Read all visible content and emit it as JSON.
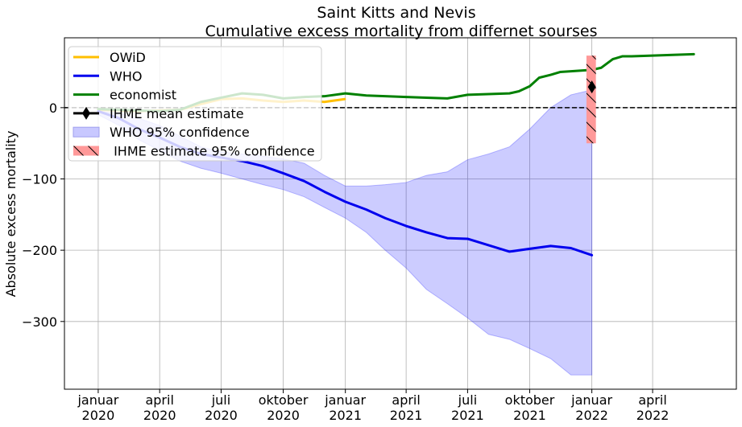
{
  "chart_data": {
    "type": "line",
    "title": "Saint Kitts and Nevis",
    "subtitle": "Cumulative excess mortality from differnet sourses",
    "xlabel": "",
    "ylabel": "Absolute excess mortality",
    "xlim": [
      "2019-11-12",
      "2022-08-03"
    ],
    "ylim": [
      -395,
      98
    ],
    "grid": true,
    "legend_position": "top-left",
    "x_ticks": [
      {
        "date": "2020-01-01",
        "line1": "januar",
        "line2": "2020"
      },
      {
        "date": "2020-04-01",
        "line1": "april",
        "line2": "2020"
      },
      {
        "date": "2020-07-01",
        "line1": "juli",
        "line2": "2020"
      },
      {
        "date": "2020-10-01",
        "line1": "oktober",
        "line2": "2020"
      },
      {
        "date": "2021-01-01",
        "line1": "januar",
        "line2": "2021"
      },
      {
        "date": "2021-04-01",
        "line1": "april",
        "line2": "2021"
      },
      {
        "date": "2021-07-01",
        "line1": "juli",
        "line2": "2021"
      },
      {
        "date": "2021-10-01",
        "line1": "oktober",
        "line2": "2021"
      },
      {
        "date": "2022-01-01",
        "line1": "januar",
        "line2": "2022"
      },
      {
        "date": "2022-04-01",
        "line1": "april",
        "line2": "2022"
      }
    ],
    "y_ticks": [
      0,
      -100,
      -200,
      -300
    ],
    "y_tick_labels": [
      "0",
      "−100",
      "−200",
      "−300"
    ],
    "zero_line": {
      "value": 0,
      "style": "dashed"
    },
    "legend": [
      {
        "label": "OWiD",
        "kind": "line",
        "color": "#ffbf00"
      },
      {
        "label": "WHO",
        "kind": "line",
        "color": "#0000ee"
      },
      {
        "label": "economist",
        "kind": "line",
        "color": "#008000"
      },
      {
        "label": "IHME mean estimate",
        "kind": "marker",
        "color": "#000000"
      },
      {
        "label": "WHO 95% confidence",
        "kind": "band",
        "color": "#c8c8ff"
      },
      {
        "label": " IHME estimate 95% confidence",
        "kind": "hatch",
        "color": "#ff9999"
      }
    ],
    "series": [
      {
        "name": "WHO 95% confidence",
        "kind": "band",
        "color": "#0000ff",
        "x": [
          "2020-01-01",
          "2020-02-01",
          "2020-03-01",
          "2020-04-01",
          "2020-05-01",
          "2020-06-01",
          "2020-07-01",
          "2020-08-01",
          "2020-09-01",
          "2020-10-01",
          "2020-11-01",
          "2020-12-01",
          "2021-01-01",
          "2021-02-01",
          "2021-03-01",
          "2021-04-01",
          "2021-05-01",
          "2021-06-01",
          "2021-07-01",
          "2021-08-01",
          "2021-09-01",
          "2021-10-01",
          "2021-11-01",
          "2021-12-01",
          "2022-01-01"
        ],
        "upper": [
          -5,
          -8,
          -15,
          -25,
          -40,
          -55,
          -62,
          -65,
          -68,
          -72,
          -78,
          -95,
          -110,
          -110,
          -108,
          -105,
          -95,
          -90,
          -73,
          -65,
          -55,
          -30,
          0,
          18,
          25
        ],
        "lower": [
          -10,
          -25,
          -45,
          -60,
          -75,
          -85,
          -92,
          -100,
          -108,
          -115,
          -125,
          -140,
          -155,
          -175,
          -200,
          -225,
          -255,
          -275,
          -295,
          -318,
          -325,
          -338,
          -352,
          -375,
          -375
        ]
      },
      {
        "name": "OWiD",
        "kind": "line",
        "color": "#ffbf00",
        "x": [
          "2020-01-01",
          "2020-02-01",
          "2020-03-01",
          "2020-04-01",
          "2020-05-01",
          "2020-06-01",
          "2020-07-01",
          "2020-08-01",
          "2020-09-01",
          "2020-10-01",
          "2020-11-01",
          "2020-12-01",
          "2020-12-31"
        ],
        "y": [
          -3,
          -4,
          -5,
          -4,
          -3,
          5,
          12,
          13,
          10,
          8,
          10,
          8,
          12
        ]
      },
      {
        "name": "WHO",
        "kind": "line",
        "color": "#0000ee",
        "x": [
          "2020-01-01",
          "2020-02-01",
          "2020-03-01",
          "2020-04-01",
          "2020-05-01",
          "2020-06-01",
          "2020-07-01",
          "2020-08-01",
          "2020-09-01",
          "2020-10-01",
          "2020-11-01",
          "2020-12-01",
          "2021-01-01",
          "2021-02-01",
          "2021-03-01",
          "2021-04-01",
          "2021-05-01",
          "2021-06-01",
          "2021-07-01",
          "2021-08-01",
          "2021-09-01",
          "2021-10-01",
          "2021-11-01",
          "2021-12-01",
          "2022-01-01"
        ],
        "y": [
          -5,
          -15,
          -30,
          -42,
          -55,
          -65,
          -70,
          -75,
          -82,
          -92,
          -103,
          -118,
          -132,
          -143,
          -155,
          -166,
          -175,
          -183,
          -184,
          -193,
          -202,
          -198,
          -194,
          -197,
          -207
        ]
      },
      {
        "name": "economist",
        "kind": "line",
        "color": "#008000",
        "x": [
          "2020-01-01",
          "2020-02-01",
          "2020-03-01",
          "2020-04-01",
          "2020-05-01",
          "2020-06-01",
          "2020-07-01",
          "2020-08-01",
          "2020-09-01",
          "2020-10-01",
          "2020-11-01",
          "2020-12-01",
          "2021-01-01",
          "2021-02-01",
          "2021-03-01",
          "2021-04-01",
          "2021-05-01",
          "2021-06-01",
          "2021-07-01",
          "2021-08-01",
          "2021-09-01",
          "2021-09-15",
          "2021-10-01",
          "2021-10-15",
          "2021-11-01",
          "2021-11-15",
          "2021-12-01",
          "2022-01-01",
          "2022-01-15",
          "2022-02-01",
          "2022-02-15",
          "2022-03-01",
          "2022-04-01",
          "2022-05-01",
          "2022-06-01"
        ],
        "y": [
          -2,
          -3,
          -4,
          -5,
          -3,
          8,
          14,
          20,
          18,
          13,
          15,
          16,
          20,
          17,
          16,
          15,
          14,
          13,
          18,
          19,
          20,
          23,
          30,
          42,
          46,
          50,
          51,
          53,
          56,
          68,
          72,
          72,
          73,
          74,
          75
        ]
      },
      {
        "name": "IHME mean estimate",
        "kind": "marker",
        "color": "#000000",
        "x": [
          "2022-01-01"
        ],
        "y": [
          29
        ]
      },
      {
        "name": " IHME estimate 95% confidence",
        "kind": "hatch",
        "color": "#ff9999",
        "x_range": [
          "2021-12-24",
          "2022-01-07"
        ],
        "y_range": [
          -50,
          73
        ]
      }
    ]
  }
}
